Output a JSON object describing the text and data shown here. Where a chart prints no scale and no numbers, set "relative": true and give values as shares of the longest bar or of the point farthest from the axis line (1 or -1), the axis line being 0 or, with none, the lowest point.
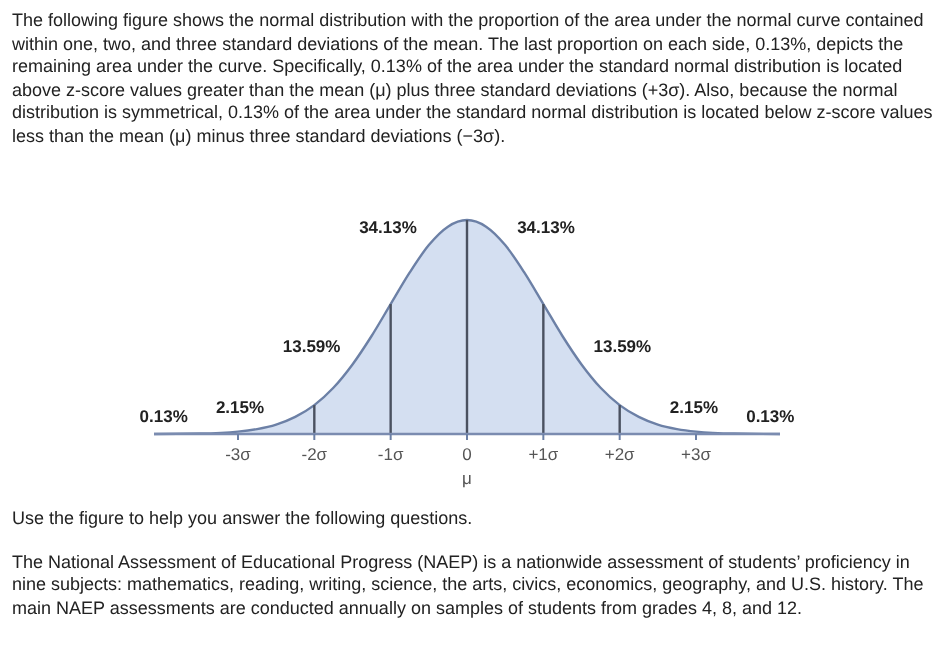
{
  "chart_data": {
    "type": "area",
    "relative": true,
    "subtitle": "The following figure shows the normal distribution with the proportion of the area under the normal curve contained within one, two, and three standard deviations of the mean. The last proportion on each side, 0.13%, depicts the remaining area under the curve. Specifically, 0.13% of the area under the standard normal distribution is located above z-score values greater than the mean (μ) plus three standard deviations (+3σ). Also, because the normal distribution is symmetrical, 0.13% of the area under the standard normal distribution is located below z-score values less than the mean (μ) minus three standard deviations (−3σ).",
    "xlabel": "μ",
    "x": [
      -4.1,
      -3.5,
      -3,
      -2.75,
      -2.5,
      -2.25,
      -2,
      -1.75,
      -1.5,
      -1.25,
      -1,
      -0.75,
      -0.5,
      -0.25,
      0,
      0.25,
      0.5,
      0.75,
      1,
      1.25,
      1.5,
      1.75,
      2,
      2.25,
      2.5,
      2.75,
      3,
      3.5,
      4.1
    ],
    "series": [
      {
        "color": "#d4dff1",
        "values": [
          0,
          0.002,
          0.011,
          0.023,
          0.044,
          0.08,
          0.135,
          0.216,
          0.325,
          0.458,
          0.607,
          0.755,
          0.883,
          0.969,
          1,
          0.969,
          0.883,
          0.755,
          0.607,
          0.458,
          0.325,
          0.216,
          0.135,
          0.08,
          0.044,
          0.023,
          0.011,
          0.002,
          0
        ]
      }
    ],
    "xlim": [
      -4.1,
      4.1
    ],
    "xticks": [
      {
        "value": -3,
        "label": "-3σ"
      },
      {
        "value": -2,
        "label": "-2σ"
      },
      {
        "value": -1,
        "label": "-1σ"
      },
      0,
      {
        "value": 1,
        "label": "+1σ"
      },
      {
        "value": 2,
        "label": "+2σ"
      },
      {
        "value": 3,
        "label": "+3σ"
      }
    ],
    "ref_lines": [
      {
        "axis": "x",
        "value": -2
      },
      {
        "axis": "x",
        "value": -1
      },
      {
        "axis": "x",
        "value": 0
      },
      {
        "axis": "x",
        "value": 1
      },
      {
        "axis": "x",
        "value": 2
      }
    ],
    "annotations": [
      {
        "text": "34.13%",
        "x": -0.5,
        "y": 0.883
      },
      {
        "text": "34.13%",
        "x": 0.5,
        "y": 0.883
      },
      {
        "text": "13.59%",
        "x": -1.5,
        "y": 0.325
      },
      {
        "text": "13.59%",
        "x": 1.5,
        "y": 0.325
      },
      {
        "text": "2.15%",
        "x": -2.5,
        "y": 0.044
      },
      {
        "text": "2.15%",
        "x": 2.5,
        "y": 0.044
      },
      {
        "text": "0.13%",
        "x": -3.5,
        "y": 0.002
      },
      {
        "text": "0.13%",
        "x": 3.5,
        "y": 0.002
      },
      "Use the figure to help you answer the following questions.",
      "The National Assessment of Educational Progress (NAEP) is a nationwide assessment of students’ proficiency in nine subjects: mathematics, reading, writing, science, the arts, civics, economics, geography, and U.S. history. The main NAEP assessments are conducted annually on samples of students from grades 4, 8, and 12."
    ]
  }
}
